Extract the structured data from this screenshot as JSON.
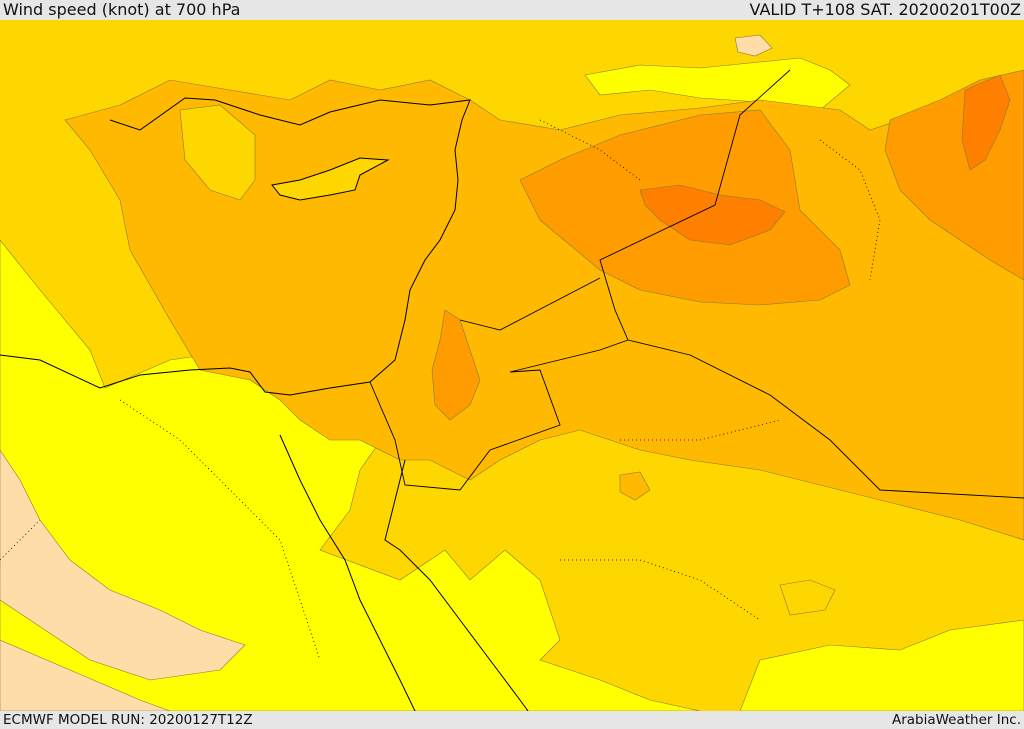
{
  "header": {
    "title": "Wind speed (knot) at 700 hPa",
    "valid": "VALID T+108 SAT. 20200201T00Z"
  },
  "footer": {
    "model_run": "ECMWF MODEL RUN: 20200127T12Z",
    "credit": "ArabiaWeather Inc."
  },
  "map": {
    "variable": "wind speed",
    "level": "700 hPa",
    "unit": "knot",
    "region": "Eastern Mediterranean / Levant / Northern Arabia",
    "color_levels": [
      "#fedda8",
      "#ffff00",
      "#ffd700",
      "#ffb900",
      "#ff9c00",
      "#ff7f00"
    ]
  }
}
